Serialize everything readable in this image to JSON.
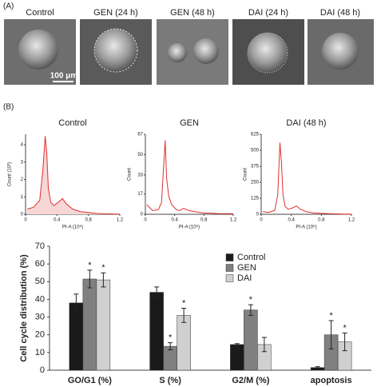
{
  "panels": {
    "a": "(A)",
    "b": "(B)"
  },
  "images": {
    "labels": [
      "Control",
      "GEN (24 h)",
      "GEN (48 h)",
      "DAI (24 h)",
      "DAI (48 h)"
    ],
    "scale_bar": "100 μm"
  },
  "chart_data": [
    {
      "type": "area",
      "title": "Control",
      "x_label": "PI-A (10⁶)",
      "y_label": "Count (10³)",
      "color": "#e03030",
      "x": [
        0.02,
        0.1,
        0.18,
        0.22,
        0.25,
        0.27,
        0.29,
        0.32,
        0.36,
        0.42,
        0.47,
        0.52,
        0.6,
        0.7,
        0.8,
        0.9,
        1.0,
        1.1,
        1.2
      ],
      "values": [
        0.3,
        0.4,
        0.8,
        2.5,
        4.5,
        3.5,
        1.5,
        0.7,
        0.5,
        0.7,
        0.9,
        0.6,
        0.3,
        0.15,
        0.1,
        0.05,
        0.03,
        0.02,
        0.01
      ],
      "xlim": [
        0,
        1.2
      ],
      "xticks": [
        0,
        0.4,
        0.8,
        1.2
      ],
      "ylim": [
        0,
        4.6
      ],
      "yticks": [
        0,
        1,
        2,
        3,
        4
      ]
    },
    {
      "type": "line",
      "title": "GEN",
      "x_label": "PI-A (10⁶)",
      "y_label": "Count",
      "color": "#e03030",
      "x": [
        0.02,
        0.1,
        0.18,
        0.22,
        0.25,
        0.27,
        0.29,
        0.32,
        0.36,
        0.42,
        0.47,
        0.52,
        0.6,
        0.7,
        0.8,
        0.9,
        1.0,
        1.1,
        1.2
      ],
      "values": [
        8,
        3,
        4,
        10,
        40,
        62,
        30,
        15,
        8,
        4,
        3,
        5,
        3,
        2,
        1,
        1,
        0.5,
        0.5,
        0.5
      ],
      "xlim": [
        0,
        1.2
      ],
      "xticks": [
        0,
        0.4,
        0.8,
        1.2
      ],
      "ylim": [
        0,
        67
      ],
      "yticks": [
        0,
        17,
        33,
        50,
        67
      ]
    },
    {
      "type": "line",
      "title": "DAI (48 h)",
      "x_label": "PI-A (10⁶)",
      "y_label": "Count",
      "color": "#e03030",
      "x": [
        0.02,
        0.1,
        0.18,
        0.22,
        0.25,
        0.27,
        0.29,
        0.32,
        0.36,
        0.42,
        0.47,
        0.52,
        0.6,
        0.7,
        0.8,
        0.9,
        1.0,
        1.1,
        1.2
      ],
      "values": [
        20,
        15,
        30,
        150,
        560,
        400,
        150,
        60,
        40,
        50,
        65,
        40,
        20,
        10,
        8,
        5,
        3,
        2,
        1
      ],
      "xlim": [
        0,
        1.2
      ],
      "xticks": [
        0,
        0.4,
        0.8,
        1.2
      ],
      "ylim": [
        0,
        625
      ],
      "yticks": [
        0,
        125,
        250,
        375,
        500,
        625
      ]
    },
    {
      "type": "bar",
      "y_label": "Cell cycle distribution (%)",
      "categories": [
        "GO/G1 (%)",
        "S (%)",
        "G2/M (%)",
        "apoptosis"
      ],
      "series": [
        {
          "name": "Control",
          "color": "#1a1a1a",
          "values": [
            38,
            44,
            14.5,
            1.5
          ],
          "errors": [
            5,
            3,
            0.5,
            0.5
          ]
        },
        {
          "name": "GEN",
          "color": "#808080",
          "values": [
            51.5,
            13.5,
            34,
            20
          ],
          "errors": [
            5,
            2,
            3,
            8
          ],
          "significance": [
            "*",
            "*",
            "*",
            "*"
          ]
        },
        {
          "name": "DAI",
          "color": "#d0d0d0",
          "values": [
            51,
            31,
            14.5,
            16
          ],
          "errors": [
            4,
            4,
            4,
            5
          ],
          "significance": [
            "*",
            "*",
            null,
            "*"
          ]
        }
      ],
      "ylim": [
        0,
        70
      ],
      "yticks": [
        0,
        10,
        20,
        30,
        40,
        50,
        60,
        70
      ],
      "legend": "upper right"
    }
  ]
}
